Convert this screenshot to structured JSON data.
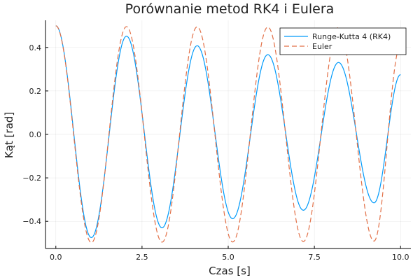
{
  "chart_data": {
    "type": "line",
    "title": "Porównanie metod RK4 i Eulera",
    "xlabel": "Czas [s]",
    "ylabel": "Kąt [rad]",
    "xlim": [
      -0.3,
      10.3
    ],
    "ylim": [
      -0.525,
      0.525
    ],
    "xticks": [
      0.0,
      2.5,
      5.0,
      7.5,
      10.0
    ],
    "xtick_labels": [
      "0.0",
      "2.5",
      "5.0",
      "7.5",
      "10.0"
    ],
    "yticks": [
      -0.4,
      -0.2,
      0.0,
      0.2,
      0.4
    ],
    "ytick_labels": [
      "−0.4",
      "−0.2",
      "0.0",
      "0.2",
      "0.4"
    ],
    "grid": true,
    "legend_position": "top-right",
    "series": [
      {
        "name": "Runge-Kutta 4 (RK4)",
        "color": "#009AFA",
        "style": "solid",
        "x": [
          0.0,
          1.03,
          2.05,
          3.08,
          4.1,
          5.13,
          6.15,
          7.18,
          8.2,
          9.23,
          10.0
        ],
        "y": [
          0.5,
          -0.475,
          0.452,
          -0.43,
          0.408,
          -0.388,
          0.367,
          -0.349,
          0.331,
          -0.315,
          0.275
        ]
      },
      {
        "name": "Euler",
        "color": "#E26F46",
        "style": "dashed",
        "x": [
          0.0,
          1.03,
          2.05,
          3.08,
          4.1,
          5.13,
          6.15,
          7.18,
          8.2,
          9.23,
          10.0
        ],
        "y": [
          0.5,
          -0.498,
          0.496,
          -0.496,
          0.495,
          -0.495,
          0.494,
          -0.493,
          0.492,
          -0.491,
          0.41
        ]
      }
    ]
  }
}
